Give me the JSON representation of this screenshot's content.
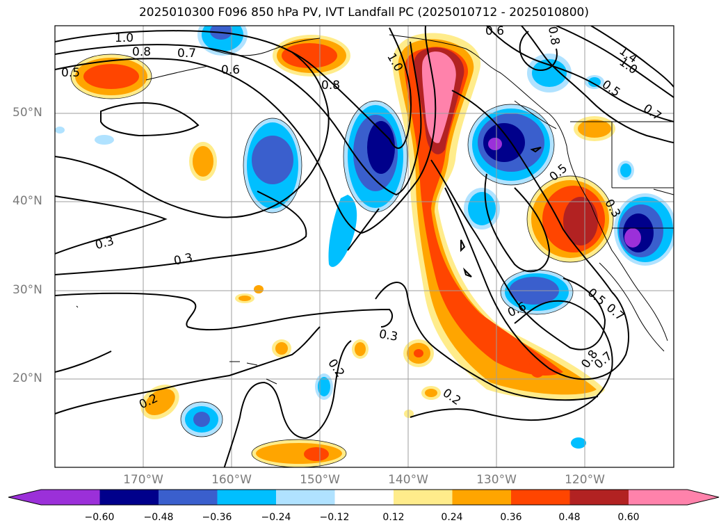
{
  "title": "2025010300 F096 850 hPa PV, IVT Landfall PC (2025010712 - 2025010800)",
  "map": {
    "lat_labels": [
      "50°N",
      "40°N",
      "30°N",
      "20°N"
    ],
    "lon_labels": [
      "170°W",
      "160°W",
      "150°W",
      "140°W",
      "130°W",
      "120°W"
    ]
  },
  "contour_labels": [
    "1.0",
    "0.8",
    "0.7",
    "0.5",
    "0.6",
    "0.8",
    "1.0",
    "0.6",
    "0.8",
    "1.4",
    "1.0",
    "0.5",
    "0.7",
    "0.5",
    "0.3",
    "0.3",
    "0.3",
    "0.2",
    "0.2",
    "0.2",
    "0.3",
    "0.6",
    "0.5",
    "0.7",
    "0.8",
    "0.7"
  ],
  "colorbar": {
    "ticks": [
      "−0.60",
      "−0.48",
      "−0.36",
      "−0.24",
      "−0.12",
      "0.12",
      "0.24",
      "0.36",
      "0.48",
      "0.60"
    ],
    "colors": [
      "#9b30d9",
      "#00008b",
      "#3a5fcd",
      "#00bfff",
      "#b0e2ff",
      "#ffffff",
      "#ffec8b",
      "#ffa500",
      "#ff4500",
      "#b22222",
      "#ff82ab"
    ]
  }
}
